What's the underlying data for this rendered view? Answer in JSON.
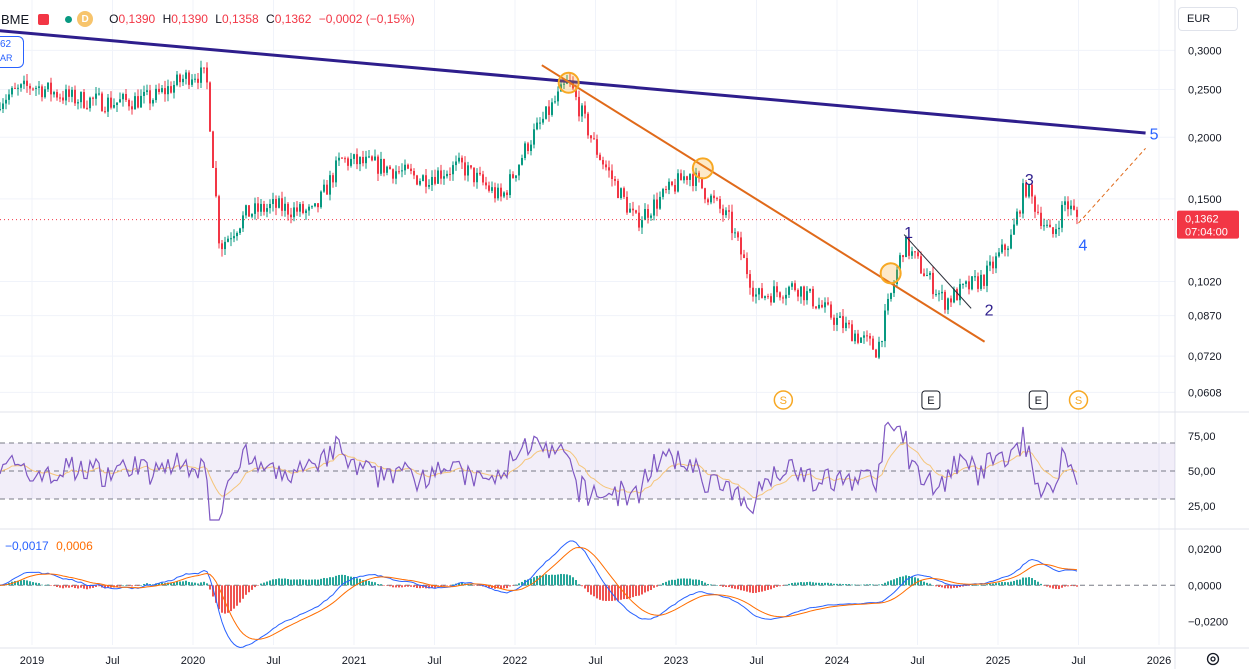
{
  "header": {
    "symbol": "BME",
    "interval_badge": "D",
    "ohlc": {
      "open_label": "O",
      "open": "0,1390",
      "high_label": "H",
      "high": "0,1390",
      "low_label": "L",
      "low": "0,1358",
      "close_label": "C",
      "close": "0,1362",
      "change": "−0,0002 (−0,15%)"
    },
    "currency": "EUR"
  },
  "left_tag": {
    "line1": "62",
    "line2": "AR"
  },
  "macd_values": {
    "macd": "−0,0017",
    "signal": "0,0006"
  },
  "price_tag": {
    "value": "0,1362",
    "countdown": "07:04:00"
  },
  "colors": {
    "up": "#089981",
    "down": "#f23645",
    "trendline_main": "#2e1e8c",
    "trendline_orange": "#e06a1a",
    "rsi_line": "#7e57c2",
    "rsi_ma": "#f5c57a",
    "macd_line": "#2962ff",
    "signal_line": "#ff6d00",
    "marker": "#f7a823"
  },
  "chart_data": [
    {
      "type": "candlestick",
      "name": "price",
      "y_axis": {
        "scale": "log",
        "ticks": [
          "0,3000",
          "0,2500",
          "0,2000",
          "0,1500",
          "0,1020",
          "0,0870",
          "0,0720",
          "0,0608"
        ],
        "ylim": [
          0.056,
          0.33
        ]
      },
      "x_axis": {
        "ticks": [
          "2019",
          "Jul",
          "2020",
          "Jul",
          "2021",
          "Jul",
          "2022",
          "Jul",
          "2023",
          "Jul",
          "2024",
          "Jul",
          "2025",
          "Jul",
          "2026"
        ]
      },
      "approx_close_path": [
        {
          "date": "2018-10",
          "close": 0.235
        },
        {
          "date": "2019-01",
          "close": 0.255
        },
        {
          "date": "2019-04",
          "close": 0.24
        },
        {
          "date": "2019-07",
          "close": 0.235
        },
        {
          "date": "2019-10",
          "close": 0.24
        },
        {
          "date": "2020-01",
          "close": 0.27
        },
        {
          "date": "2020-02",
          "close": 0.265
        },
        {
          "date": "2020-03",
          "close": 0.12
        },
        {
          "date": "2020-05",
          "close": 0.14
        },
        {
          "date": "2020-07",
          "close": 0.145
        },
        {
          "date": "2020-10",
          "close": 0.14
        },
        {
          "date": "2020-12",
          "close": 0.18
        },
        {
          "date": "2021-03",
          "close": 0.175
        },
        {
          "date": "2021-06",
          "close": 0.165
        },
        {
          "date": "2021-09",
          "close": 0.175
        },
        {
          "date": "2021-12",
          "close": 0.15
        },
        {
          "date": "2022-02",
          "close": 0.195
        },
        {
          "date": "2022-05",
          "close": 0.26
        },
        {
          "date": "2022-07",
          "close": 0.19
        },
        {
          "date": "2022-10",
          "close": 0.135
        },
        {
          "date": "2023-02",
          "close": 0.17
        },
        {
          "date": "2023-05",
          "close": 0.135
        },
        {
          "date": "2023-07",
          "close": 0.095
        },
        {
          "date": "2023-10",
          "close": 0.1
        },
        {
          "date": "2024-01",
          "close": 0.085
        },
        {
          "date": "2024-04",
          "close": 0.074
        },
        {
          "date": "2024-06",
          "close": 0.122
        },
        {
          "date": "2024-09",
          "close": 0.093
        },
        {
          "date": "2024-12",
          "close": 0.104
        },
        {
          "date": "2025-02",
          "close": 0.125
        },
        {
          "date": "2025-03",
          "close": 0.16
        },
        {
          "date": "2025-05",
          "close": 0.125
        },
        {
          "date": "2025-06",
          "close": 0.148
        },
        {
          "date": "2025-07",
          "close": 0.1362
        }
      ],
      "current_price": 0.1362,
      "wave_labels": [
        "1",
        "2",
        "3",
        "4",
        "5"
      ],
      "event_markers": [
        "S",
        "E",
        "E",
        "S"
      ]
    },
    {
      "type": "line",
      "name": "rsi",
      "y_axis": {
        "ticks": [
          "75,00",
          "50,00",
          "25,00"
        ],
        "ylim": [
          10,
          90
        ]
      },
      "band": [
        30,
        70
      ]
    },
    {
      "type": "line",
      "name": "macd",
      "y_axis": {
        "ticks": [
          "0,0200",
          "0,0000",
          "−0,0200"
        ],
        "ylim": [
          -0.033,
          0.03
        ]
      }
    }
  ]
}
